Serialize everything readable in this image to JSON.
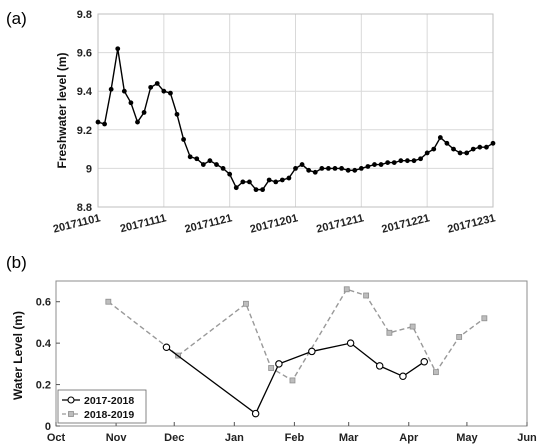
{
  "panels": {
    "a_label": "(a)",
    "b_label": "(b)"
  },
  "chart_data": [
    {
      "type": "line",
      "title": "",
      "xlabel": "",
      "ylabel": "Freshwater level (m)",
      "ylim": [
        8.8,
        9.8
      ],
      "yticks": [
        "8.8",
        "9",
        "9.2",
        "9.4",
        "9.6",
        "9.8"
      ],
      "xticks": [
        "20171101",
        "20171111",
        "20171121",
        "20171201",
        "20171211",
        "20171221",
        "20171231"
      ],
      "grid": true,
      "series": [
        {
          "x": [
            "2017-11-01",
            "2017-11-02",
            "2017-11-03",
            "2017-11-04",
            "2017-11-05",
            "2017-11-06",
            "2017-11-07",
            "2017-11-08",
            "2017-11-09",
            "2017-11-10",
            "2017-11-11",
            "2017-11-12",
            "2017-11-13",
            "2017-11-14",
            "2017-11-15",
            "2017-11-16",
            "2017-11-17",
            "2017-11-18",
            "2017-11-19",
            "2017-11-20",
            "2017-11-21",
            "2017-11-22",
            "2017-11-23",
            "2017-11-24",
            "2017-11-25",
            "2017-11-26",
            "2017-11-27",
            "2017-11-28",
            "2017-11-29",
            "2017-11-30",
            "2017-12-01",
            "2017-12-02",
            "2017-12-03",
            "2017-12-04",
            "2017-12-05",
            "2017-12-06",
            "2017-12-07",
            "2017-12-08",
            "2017-12-09",
            "2017-12-10",
            "2017-12-11",
            "2017-12-12",
            "2017-12-13",
            "2017-12-14",
            "2017-12-15",
            "2017-12-16",
            "2017-12-17",
            "2017-12-18",
            "2017-12-19",
            "2017-12-20",
            "2017-12-21",
            "2017-12-22",
            "2017-12-23",
            "2017-12-24",
            "2017-12-25",
            "2017-12-26",
            "2017-12-27",
            "2017-12-28",
            "2017-12-29",
            "2017-12-30",
            "2017-12-31"
          ],
          "values": [
            9.24,
            9.23,
            9.41,
            9.62,
            9.4,
            9.34,
            9.24,
            9.29,
            9.42,
            9.44,
            9.4,
            9.39,
            9.28,
            9.15,
            9.06,
            9.05,
            9.02,
            9.04,
            9.02,
            9.0,
            8.97,
            8.9,
            8.93,
            8.93,
            8.89,
            8.89,
            8.94,
            8.93,
            8.94,
            8.95,
            9.0,
            9.02,
            8.99,
            8.98,
            9.0,
            9.0,
            9.0,
            9.0,
            8.99,
            8.99,
            9.0,
            9.01,
            9.02,
            9.02,
            9.03,
            9.03,
            9.04,
            9.04,
            9.04,
            9.05,
            9.08,
            9.1,
            9.16,
            9.13,
            9.1,
            9.08,
            9.08,
            9.1,
            9.11,
            9.11,
            9.13
          ],
          "color": "#000000",
          "marker": "filled-circle"
        }
      ]
    },
    {
      "type": "line",
      "title": "",
      "xlabel": "",
      "ylabel": "Water Level (m)",
      "ylim": [
        0,
        0.7
      ],
      "yticks": [
        "0",
        "0.2",
        "0.4",
        "0.6"
      ],
      "xlim": [
        "2017-10-01",
        "2018-06-01"
      ],
      "xticks": [
        "Oct",
        "Nov",
        "Dec",
        "Jan",
        "Feb",
        "Mar",
        "Apr",
        "May",
        "Jun"
      ],
      "grid": false,
      "legend": "bottom-left",
      "series": [
        {
          "name": "2017-2018",
          "x": [
            "2017-11-27",
            "2018-01-12",
            "2018-01-24",
            "2018-02-10",
            "2018-03-02",
            "2018-03-17",
            "2018-03-29",
            "2018-04-09"
          ],
          "values": [
            0.38,
            0.06,
            0.3,
            0.36,
            0.4,
            0.29,
            0.24,
            0.31
          ],
          "color": "#000000",
          "marker": "open-circle",
          "dash": "solid"
        },
        {
          "name": "2018-2019",
          "x": [
            "2017-10-28",
            "2017-12-03",
            "2018-01-07",
            "2018-01-20",
            "2018-01-31",
            "2018-02-28",
            "2018-03-10",
            "2018-03-22",
            "2018-04-03",
            "2018-04-15",
            "2018-04-27",
            "2018-05-10"
          ],
          "values": [
            0.6,
            0.34,
            0.59,
            0.28,
            0.22,
            0.66,
            0.63,
            0.45,
            0.48,
            0.26,
            0.43,
            0.52
          ],
          "color": "#999999",
          "marker": "square",
          "dash": "dashed"
        }
      ]
    }
  ]
}
